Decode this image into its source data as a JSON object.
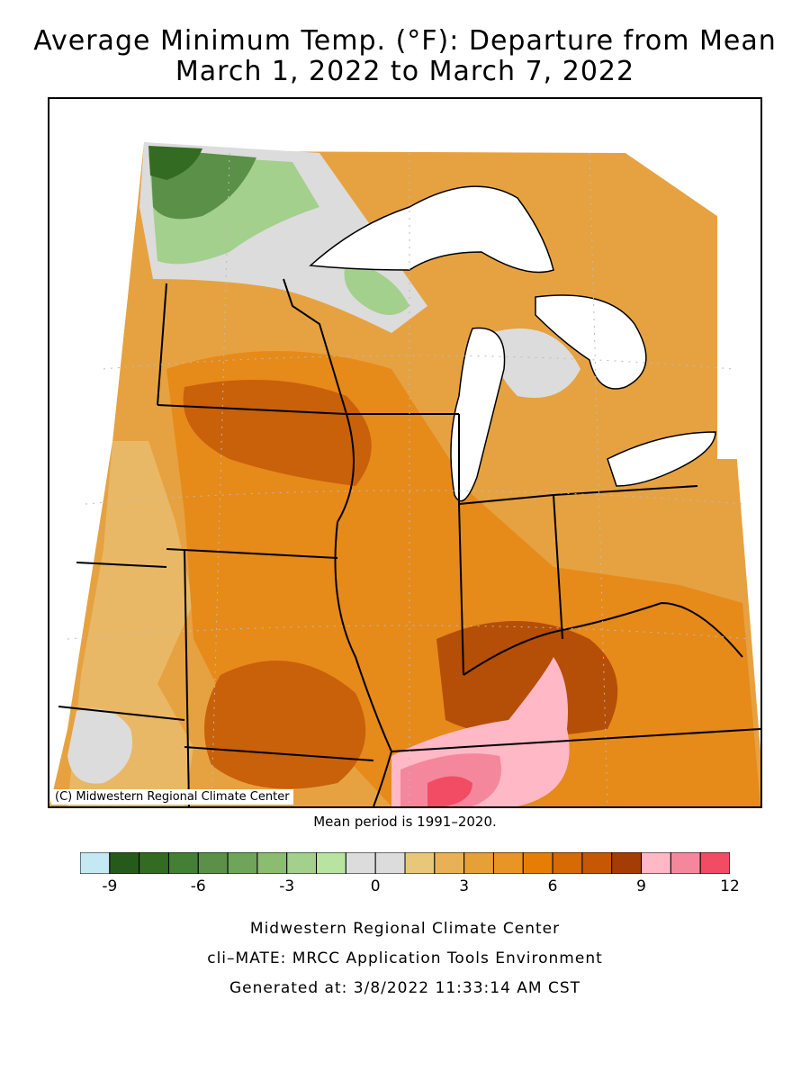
{
  "title": {
    "line1": "Average Minimum Temp. (°F): Departure from Mean",
    "line2": "March 1, 2022 to March 7, 2022"
  },
  "map": {
    "copyright": "(C) Midwestern Regional Climate Center",
    "mean_note": "Mean period is 1991–2020."
  },
  "legend": {
    "colors": [
      "#c5e8f5",
      "#265a1a",
      "#336b22",
      "#437f34",
      "#5a9048",
      "#6ea55a",
      "#8bbc70",
      "#a3d08c",
      "#b8e3a0",
      "#dcdcdc",
      "#dcdcdc",
      "#e8c77a",
      "#e8b155",
      "#e5a037",
      "#e89526",
      "#e67e05",
      "#d66a05",
      "#c55705",
      "#a63c05",
      "#ffb8c5",
      "#f5879c",
      "#f24c64"
    ],
    "tick_labels": [
      "-9",
      "-6",
      "-3",
      "0",
      "3",
      "6",
      "9",
      "12"
    ]
  },
  "footer": {
    "line1": "Midwestern Regional Climate Center",
    "line2": "cli–MATE: MRCC Application Tools Environment",
    "line3": "Generated at: 3/8/2022 11:33:14 AM CST"
  }
}
